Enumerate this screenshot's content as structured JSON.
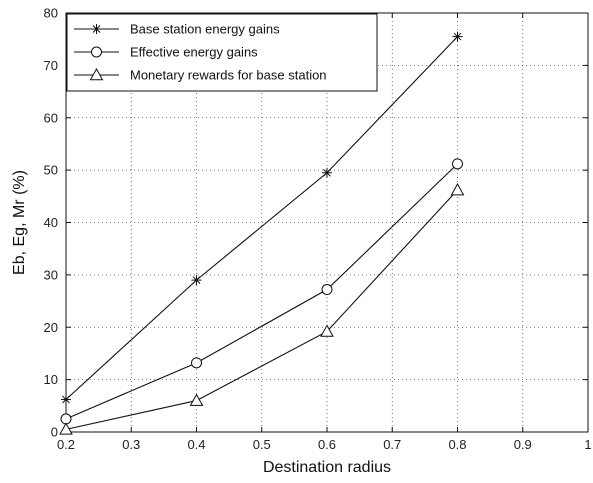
{
  "chart_data": {
    "type": "line",
    "xlabel": "Destination radius",
    "ylabel": "Eb, Eg, Mr (%)",
    "xlim": [
      0.2,
      1
    ],
    "ylim": [
      0,
      80
    ],
    "xticks": [
      0.2,
      0.3,
      0.4,
      0.5,
      0.6,
      0.7,
      0.8,
      0.9,
      1
    ],
    "xtick_labels": [
      "0.2",
      "0.3",
      "0.4",
      "0.5",
      "0.6",
      "0.7",
      "0.8",
      "0.9",
      "1"
    ],
    "yticks": [
      0,
      10,
      20,
      30,
      40,
      50,
      60,
      70,
      80
    ],
    "ytick_labels": [
      "0",
      "10",
      "20",
      "30",
      "40",
      "50",
      "60",
      "70",
      "80"
    ],
    "grid": true,
    "legend_position": "top-left",
    "x": [
      0.2,
      0.4,
      0.6,
      0.8
    ],
    "series": [
      {
        "name": "Base station energy gains",
        "marker": "star",
        "values": [
          6.2,
          29,
          49.5,
          75.5
        ]
      },
      {
        "name": "Effective energy gains",
        "marker": "circle",
        "values": [
          2.5,
          13.2,
          27.2,
          51.2
        ]
      },
      {
        "name": "Monetary rewards for base station",
        "marker": "triangle",
        "values": [
          0.5,
          6,
          19.2,
          46.2
        ]
      }
    ]
  }
}
